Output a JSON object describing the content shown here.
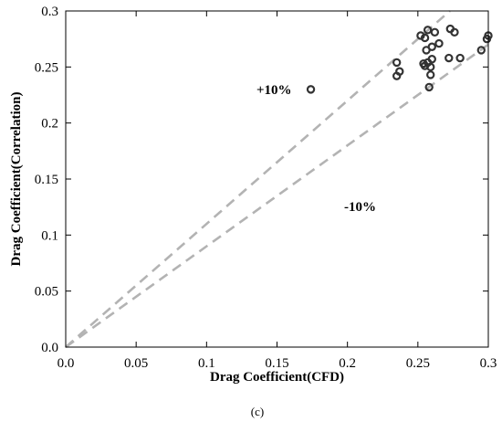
{
  "chart_data": {
    "type": "scatter",
    "xlabel": "Drag Coefficient(CFD)",
    "ylabel": "Drag Coefficient(Correlation)",
    "xlim": [
      0,
      0.3
    ],
    "ylim": [
      0,
      0.3
    ],
    "xticks": [
      "0.0",
      "0.05",
      "0.1",
      "0.15",
      "0.2",
      "0.25",
      "0.3"
    ],
    "yticks": [
      "0.0",
      "0.05",
      "0.1",
      "0.15",
      "0.2",
      "0.25",
      "0.3"
    ],
    "grid": false,
    "legend": "none",
    "points": [
      {
        "x": 0.174,
        "y": 0.23
      },
      {
        "x": 0.235,
        "y": 0.254
      },
      {
        "x": 0.235,
        "y": 0.242
      },
      {
        "x": 0.237,
        "y": 0.246
      },
      {
        "x": 0.252,
        "y": 0.278
      },
      {
        "x": 0.254,
        "y": 0.253
      },
      {
        "x": 0.255,
        "y": 0.251
      },
      {
        "x": 0.255,
        "y": 0.276
      },
      {
        "x": 0.256,
        "y": 0.265
      },
      {
        "x": 0.257,
        "y": 0.283
      },
      {
        "x": 0.257,
        "y": 0.254
      },
      {
        "x": 0.258,
        "y": 0.232
      },
      {
        "x": 0.259,
        "y": 0.243
      },
      {
        "x": 0.259,
        "y": 0.25
      },
      {
        "x": 0.26,
        "y": 0.257
      },
      {
        "x": 0.26,
        "y": 0.268
      },
      {
        "x": 0.262,
        "y": 0.281
      },
      {
        "x": 0.265,
        "y": 0.271
      },
      {
        "x": 0.272,
        "y": 0.258
      },
      {
        "x": 0.273,
        "y": 0.284
      },
      {
        "x": 0.276,
        "y": 0.281
      },
      {
        "x": 0.28,
        "y": 0.258
      },
      {
        "x": 0.295,
        "y": 0.265
      },
      {
        "x": 0.299,
        "y": 0.275
      },
      {
        "x": 0.3,
        "y": 0.278
      }
    ],
    "reference_lines": [
      {
        "label": "+10%",
        "slope": 1.1
      },
      {
        "label": "-10%",
        "slope": 0.9
      }
    ],
    "line_color": "#b3b3b3",
    "marker_color": "#333333",
    "caption": "(c)"
  }
}
